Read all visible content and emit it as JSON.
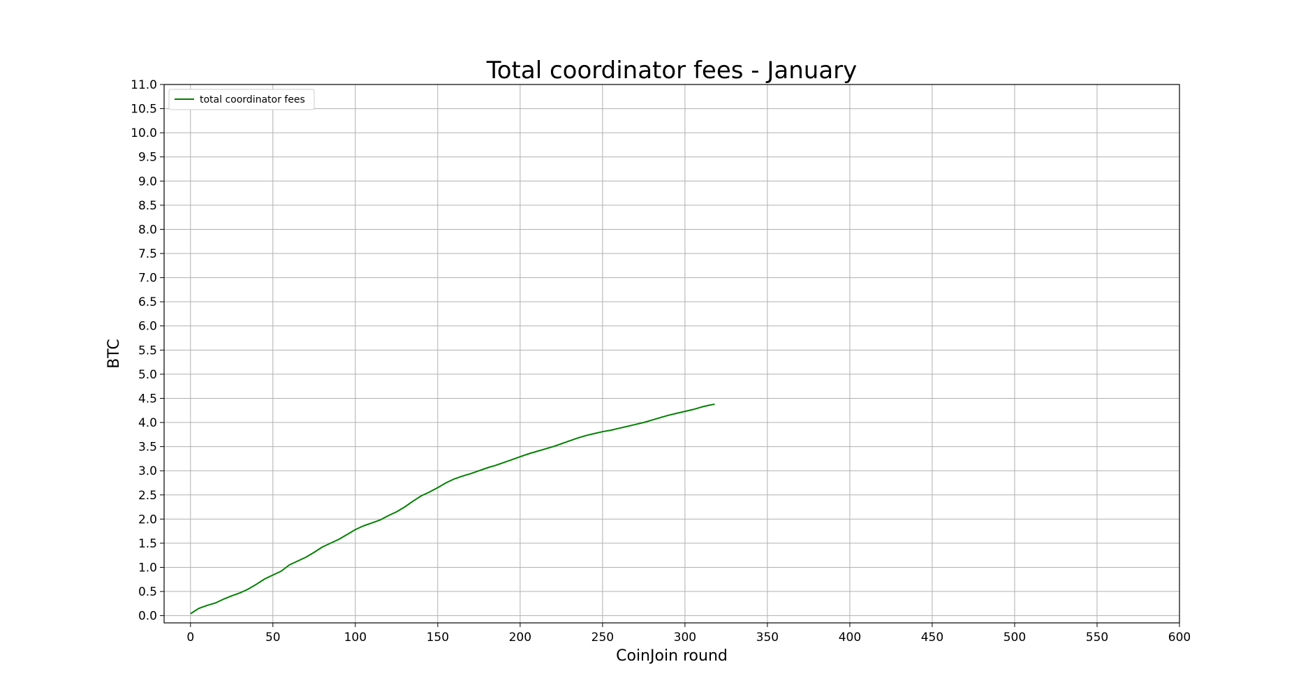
{
  "chart_data": {
    "type": "line",
    "title": "Total coordinator fees - January",
    "xlabel": "CoinJoin round",
    "ylabel": "BTC",
    "xlim": [
      -16,
      600
    ],
    "ylim": [
      -0.15,
      11.0
    ],
    "xticks": [
      0,
      50,
      100,
      150,
      200,
      250,
      300,
      350,
      400,
      450,
      500,
      550,
      600
    ],
    "xtick_labels": [
      "0",
      "50",
      "100",
      "150",
      "200",
      "250",
      "300",
      "350",
      "400",
      "450",
      "500",
      "550",
      "600"
    ],
    "yticks": [
      0.0,
      0.5,
      1.0,
      1.5,
      2.0,
      2.5,
      3.0,
      3.5,
      4.0,
      4.5,
      5.0,
      5.5,
      6.0,
      6.5,
      7.0,
      7.5,
      8.0,
      8.5,
      9.0,
      9.5,
      10.0,
      10.5,
      11.0
    ],
    "ytick_labels": [
      "0.0",
      "0.5",
      "1.0",
      "1.5",
      "2.0",
      "2.5",
      "3.0",
      "3.5",
      "4.0",
      "4.5",
      "5.0",
      "5.5",
      "6.0",
      "6.5",
      "7.0",
      "7.5",
      "8.0",
      "8.5",
      "9.0",
      "9.5",
      "10.0",
      "10.5",
      "11.0"
    ],
    "grid": true,
    "legend_position": "top-left",
    "series": [
      {
        "name": "total coordinator fees",
        "color": "#008000",
        "points": [
          [
            0,
            0.04
          ],
          [
            5,
            0.15
          ],
          [
            10,
            0.21
          ],
          [
            15,
            0.26
          ],
          [
            20,
            0.34
          ],
          [
            25,
            0.41
          ],
          [
            30,
            0.47
          ],
          [
            35,
            0.55
          ],
          [
            40,
            0.65
          ],
          [
            45,
            0.76
          ],
          [
            50,
            0.84
          ],
          [
            55,
            0.92
          ],
          [
            60,
            1.05
          ],
          [
            65,
            1.13
          ],
          [
            70,
            1.21
          ],
          [
            75,
            1.31
          ],
          [
            80,
            1.42
          ],
          [
            85,
            1.5
          ],
          [
            90,
            1.58
          ],
          [
            95,
            1.68
          ],
          [
            100,
            1.78
          ],
          [
            105,
            1.86
          ],
          [
            110,
            1.92
          ],
          [
            115,
            1.98
          ],
          [
            120,
            2.07
          ],
          [
            125,
            2.15
          ],
          [
            130,
            2.25
          ],
          [
            135,
            2.37
          ],
          [
            140,
            2.48
          ],
          [
            145,
            2.56
          ],
          [
            150,
            2.65
          ],
          [
            155,
            2.75
          ],
          [
            160,
            2.83
          ],
          [
            165,
            2.89
          ],
          [
            170,
            2.94
          ],
          [
            175,
            3.0
          ],
          [
            180,
            3.06
          ],
          [
            185,
            3.11
          ],
          [
            190,
            3.17
          ],
          [
            195,
            3.23
          ],
          [
            200,
            3.29
          ],
          [
            205,
            3.35
          ],
          [
            210,
            3.4
          ],
          [
            215,
            3.45
          ],
          [
            220,
            3.5
          ],
          [
            225,
            3.56
          ],
          [
            230,
            3.62
          ],
          [
            235,
            3.68
          ],
          [
            240,
            3.73
          ],
          [
            245,
            3.77
          ],
          [
            250,
            3.81
          ],
          [
            255,
            3.84
          ],
          [
            260,
            3.88
          ],
          [
            265,
            3.92
          ],
          [
            270,
            3.96
          ],
          [
            275,
            4.0
          ],
          [
            280,
            4.05
          ],
          [
            285,
            4.1
          ],
          [
            290,
            4.15
          ],
          [
            295,
            4.19
          ],
          [
            300,
            4.23
          ],
          [
            305,
            4.27
          ],
          [
            310,
            4.32
          ],
          [
            315,
            4.36
          ],
          [
            318,
            4.38
          ]
        ]
      }
    ]
  }
}
